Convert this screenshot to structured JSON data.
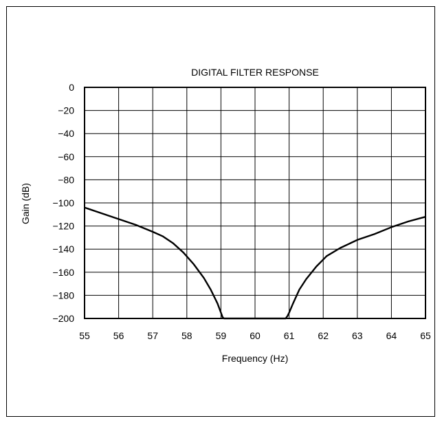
{
  "chart_data": {
    "type": "line",
    "title": "DIGITAL FILTER RESPONSE",
    "xlabel": "Frequency (Hz)",
    "ylabel": "Gain (dB)",
    "xlim": [
      55,
      65
    ],
    "ylim": [
      -200,
      0
    ],
    "x_ticks": [
      "55",
      "56",
      "57",
      "58",
      "59",
      "60",
      "61",
      "62",
      "63",
      "64",
      "65"
    ],
    "y_ticks": [
      "0",
      "−20",
      "−40",
      "−60",
      "−80",
      "−100",
      "−120",
      "−140",
      "−160",
      "−180",
      "−200"
    ],
    "grid": true,
    "series": [
      {
        "x": [
          55,
          55.5,
          56,
          56.5,
          57,
          57.3,
          57.6,
          57.9,
          58.2,
          58.5,
          58.7,
          58.9,
          59.0,
          59.05,
          59.09,
          60.9,
          60.95,
          61.0,
          61.1,
          61.3,
          61.5,
          61.8,
          62.1,
          62.5,
          63,
          63.5,
          64,
          64.5,
          65
        ],
        "y": [
          -104,
          -109,
          -114,
          -119,
          -125,
          -129,
          -135,
          -143,
          -153,
          -165,
          -175,
          -187,
          -195,
          -199,
          -200,
          -200,
          -198,
          -195,
          -188,
          -175,
          -166,
          -155,
          -146,
          -139,
          -132,
          -127,
          -121,
          -116,
          -112
        ]
      }
    ]
  }
}
